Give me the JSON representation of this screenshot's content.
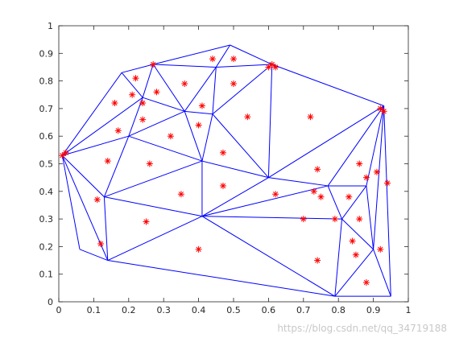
{
  "chart_data": {
    "type": "triangulation",
    "xlim": [
      0,
      1
    ],
    "ylim": [
      0,
      1
    ],
    "xticks": [
      0,
      0.1,
      0.2,
      0.3,
      0.4,
      0.5,
      0.6,
      0.7,
      0.8,
      0.9,
      1
    ],
    "yticks": [
      0,
      0.1,
      0.2,
      0.3,
      0.4,
      0.5,
      0.6,
      0.7,
      0.8,
      0.9,
      1
    ],
    "mesh": {
      "color": "#0000ff",
      "x": [
        0.01,
        0.18,
        0.27,
        0.49,
        0.61,
        0.93,
        0.95,
        0.79,
        0.14,
        0.06,
        0.24,
        0.36,
        0.45,
        0.44,
        0.2,
        0.41,
        0.13,
        0.41,
        0.6,
        0.77,
        0.81,
        0.9,
        0.88
      ],
      "y": [
        0.53,
        0.83,
        0.86,
        0.93,
        0.86,
        0.71,
        0.02,
        0.02,
        0.15,
        0.19,
        0.74,
        0.69,
        0.85,
        0.68,
        0.6,
        0.51,
        0.38,
        0.31,
        0.45,
        0.42,
        0.3,
        0.19,
        0.42
      ],
      "edges": [
        [
          0,
          1
        ],
        [
          1,
          2
        ],
        [
          2,
          3
        ],
        [
          3,
          4
        ],
        [
          4,
          5
        ],
        [
          5,
          6
        ],
        [
          6,
          7
        ],
        [
          7,
          8
        ],
        [
          8,
          9
        ],
        [
          9,
          0
        ],
        [
          0,
          10
        ],
        [
          0,
          14
        ],
        [
          0,
          16
        ],
        [
          0,
          8
        ],
        [
          1,
          10
        ],
        [
          2,
          10
        ],
        [
          2,
          11
        ],
        [
          2,
          12
        ],
        [
          3,
          12
        ],
        [
          12,
          4
        ],
        [
          12,
          11
        ],
        [
          11,
          10
        ],
        [
          11,
          13
        ],
        [
          12,
          13
        ],
        [
          13,
          4
        ],
        [
          13,
          18
        ],
        [
          4,
          18
        ],
        [
          11,
          14
        ],
        [
          10,
          14
        ],
        [
          11,
          15
        ],
        [
          13,
          15
        ],
        [
          14,
          15
        ],
        [
          14,
          16
        ],
        [
          15,
          16
        ],
        [
          15,
          18
        ],
        [
          16,
          17
        ],
        [
          15,
          17
        ],
        [
          16,
          8
        ],
        [
          17,
          8
        ],
        [
          17,
          7
        ],
        [
          17,
          18
        ],
        [
          17,
          20
        ],
        [
          18,
          19
        ],
        [
          18,
          5
        ],
        [
          5,
          19
        ],
        [
          5,
          22
        ],
        [
          19,
          22
        ],
        [
          19,
          20
        ],
        [
          20,
          22
        ],
        [
          22,
          21
        ],
        [
          5,
          21
        ],
        [
          21,
          6
        ],
        [
          20,
          21
        ],
        [
          20,
          7
        ],
        [
          21,
          7
        ],
        [
          17,
          19
        ]
      ]
    },
    "points": {
      "color": "#ff0000",
      "x": [
        0.01,
        0.02,
        0.16,
        0.17,
        0.14,
        0.11,
        0.12,
        0.22,
        0.21,
        0.24,
        0.24,
        0.27,
        0.28,
        0.32,
        0.26,
        0.35,
        0.25,
        0.36,
        0.44,
        0.5,
        0.5,
        0.41,
        0.4,
        0.47,
        0.47,
        0.54,
        0.4,
        0.61,
        0.62,
        0.6,
        0.62,
        0.72,
        0.74,
        0.73,
        0.75,
        0.7,
        0.74,
        0.79,
        0.83,
        0.86,
        0.84,
        0.85,
        0.86,
        0.88,
        0.91,
        0.92,
        0.93,
        0.94,
        0.92,
        0.88
      ],
      "y": [
        0.53,
        0.54,
        0.72,
        0.62,
        0.51,
        0.37,
        0.21,
        0.81,
        0.75,
        0.72,
        0.66,
        0.86,
        0.76,
        0.6,
        0.5,
        0.39,
        0.29,
        0.79,
        0.88,
        0.88,
        0.79,
        0.71,
        0.64,
        0.54,
        0.42,
        0.67,
        0.19,
        0.86,
        0.85,
        0.85,
        0.39,
        0.67,
        0.48,
        0.4,
        0.38,
        0.3,
        0.15,
        0.3,
        0.38,
        0.5,
        0.22,
        0.17,
        0.3,
        0.45,
        0.47,
        0.7,
        0.69,
        0.43,
        0.19,
        0.07
      ]
    },
    "watermark": "https://blog.csdn.net/qq_34719188"
  }
}
